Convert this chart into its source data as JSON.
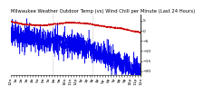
{
  "title": "Milwaukee Weather Outdoor Temp (vs) Wind Chill per Minute (Last 24 Hours)",
  "background_color": "#ffffff",
  "plot_bg_color": "#ffffff",
  "red_line_color": "#cc0000",
  "blue_line_color": "#0000ee",
  "grid_color": "#999999",
  "ylim": [
    -22,
    8
  ],
  "yticks": [
    -20,
    -15,
    -10,
    -5,
    0,
    5
  ],
  "n_points": 1440,
  "blue_noise": 3.0,
  "vline_positions": [
    0.32,
    0.63
  ],
  "title_fontsize": 3.8,
  "tick_fontsize": 3.2,
  "red_keypoints_x": [
    0.0,
    0.1,
    0.25,
    0.45,
    0.58,
    0.72,
    0.85,
    1.0
  ],
  "red_keypoints_y": [
    4.5,
    3.0,
    2.5,
    4.0,
    3.5,
    2.0,
    1.0,
    -1.0
  ],
  "blue_keypoints_x": [
    0.0,
    0.15,
    0.3,
    0.5,
    0.65,
    0.8,
    1.0
  ],
  "blue_keypoints_y": [
    -2.0,
    -4.0,
    -5.0,
    -7.0,
    -10.0,
    -15.0,
    -20.0
  ]
}
